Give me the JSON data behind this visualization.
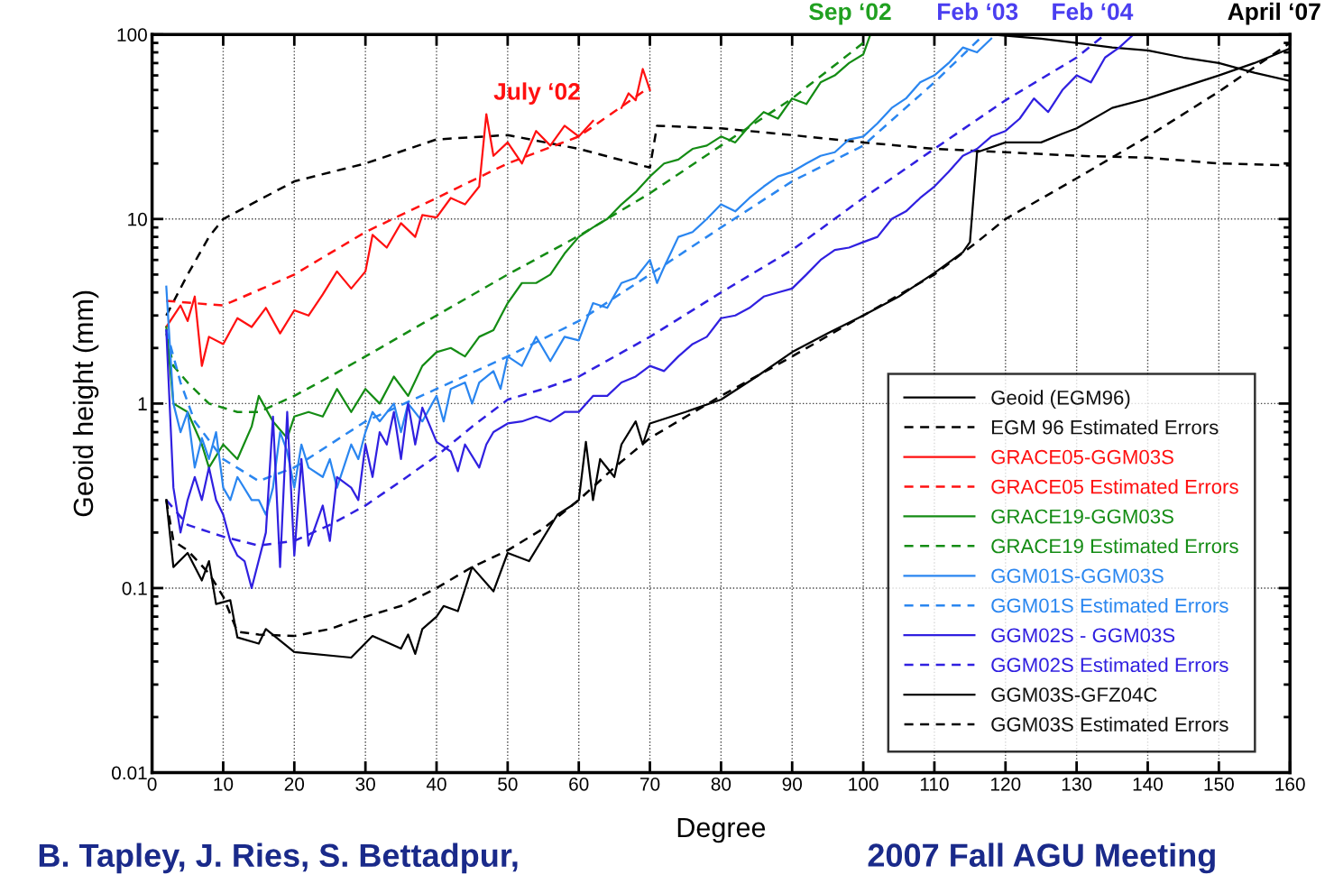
{
  "chart_data": {
    "type": "line",
    "xlabel": "Degree",
    "ylabel": "Geoid height (mm)",
    "log": "y",
    "grid": true,
    "legend": "bottom right",
    "xlim": [
      0,
      160
    ],
    "xticks": [
      0,
      10,
      20,
      30,
      40,
      50,
      60,
      70,
      80,
      90,
      100,
      110,
      120,
      130,
      140,
      150,
      160
    ],
    "ylim": [
      0.01,
      100
    ],
    "yticks": [
      0.01,
      0.1,
      1,
      10,
      100
    ],
    "annotations": [
      "July ‘02",
      "Sep ‘02",
      "Feb ‘03",
      "Feb ‘04",
      "April ‘07",
      "B. Tapley, J. Ries, S. Bettadpur,",
      "2007 Fall AGU Meeting"
    ],
    "series": [
      {
        "name": "Geoid (EGM96)",
        "color": "#000000",
        "line_style": "solid",
        "x": [
          118,
          125,
          130,
          135,
          140,
          145,
          150,
          155,
          160
        ],
        "values": [
          100,
          95,
          90,
          85,
          82,
          75,
          70,
          62,
          56
        ]
      },
      {
        "name": "EGM 96 Estimated Errors",
        "color": "#000000",
        "line_style": "dashed",
        "x": [
          2,
          5,
          8,
          10,
          20,
          30,
          40,
          50,
          60,
          70,
          71,
          80,
          90,
          100,
          110,
          120,
          130,
          140,
          150,
          160
        ],
        "values": [
          3,
          5,
          8,
          10,
          16,
          20,
          27,
          28.5,
          24,
          19,
          32,
          31,
          28.5,
          26,
          24,
          23,
          22,
          21.5,
          20,
          19.5
        ]
      },
      {
        "name": "GRACE05-GGM03S",
        "color": "#ff1010",
        "line_style": "solid",
        "x": [
          2,
          4,
          5,
          6,
          7,
          8,
          10,
          12,
          14,
          16,
          18,
          20,
          22,
          24,
          26,
          28,
          30,
          31,
          33,
          35,
          37,
          38,
          40,
          42,
          44,
          46,
          47,
          48,
          50,
          52,
          54,
          56,
          58,
          60,
          62,
          64,
          66,
          67,
          68,
          69,
          70
        ],
        "values": [
          2.6,
          3.4,
          2.8,
          3.8,
          1.6,
          2.3,
          2.1,
          2.9,
          2.6,
          3.3,
          2.4,
          3.2,
          3.0,
          3.9,
          5.2,
          4.2,
          5.2,
          8.2,
          7.0,
          9.5,
          8.0,
          10.5,
          10.2,
          13,
          12,
          15,
          37,
          22,
          26,
          20,
          30,
          25,
          32,
          28,
          34,
          null,
          40,
          48,
          44,
          65,
          50
        ]
      },
      {
        "name": "GRACE05 Estimated Errors",
        "color": "#ff1010",
        "line_style": "dashed",
        "x": [
          2,
          10,
          20,
          30,
          40,
          50,
          60,
          70
        ],
        "values": [
          3.6,
          3.4,
          5.0,
          8.5,
          13,
          20,
          28,
          52
        ]
      },
      {
        "name": "GRACE19-GGM03S",
        "color": "#148c14",
        "line_style": "solid",
        "x": [
          2,
          3,
          5,
          7,
          8,
          10,
          12,
          14,
          15,
          17,
          19,
          20,
          22,
          24,
          26,
          28,
          30,
          32,
          34,
          36,
          38,
          40,
          42,
          44,
          46,
          48,
          50,
          52,
          54,
          56,
          58,
          60,
          62,
          64,
          66,
          68,
          70,
          72,
          74,
          76,
          78,
          80,
          82,
          84,
          86,
          88,
          90,
          92,
          94,
          96,
          98,
          100,
          101
        ],
        "values": [
          2.6,
          1.0,
          0.9,
          0.6,
          0.45,
          0.6,
          0.5,
          0.75,
          1.1,
          0.8,
          0.65,
          0.85,
          0.9,
          0.85,
          1.2,
          0.9,
          1.2,
          1.0,
          1.4,
          1.1,
          1.6,
          1.9,
          2.0,
          1.8,
          2.3,
          2.5,
          3.5,
          4.5,
          4.5,
          5,
          6.5,
          8,
          9,
          10,
          12,
          14,
          17,
          20,
          21,
          24,
          25,
          28,
          26,
          32,
          38,
          35,
          45,
          42,
          55,
          60,
          70,
          78,
          100
        ]
      },
      {
        "name": "GRACE19 Estimated Errors",
        "color": "#148c14",
        "line_style": "dashed",
        "x": [
          2,
          3,
          5,
          8,
          12,
          15,
          20,
          25,
          30,
          40,
          50,
          60,
          70,
          80,
          90,
          100
        ],
        "values": [
          2.4,
          1.6,
          1.3,
          1.0,
          0.9,
          0.9,
          1.1,
          1.4,
          1.8,
          3.0,
          5.0,
          8.1,
          13.8,
          25,
          45,
          90
        ]
      },
      {
        "name": "GGM01S-GGM03S",
        "color": "#2a86f0",
        "line_style": "solid",
        "x": [
          2,
          3,
          4,
          5,
          6,
          7,
          8,
          9,
          10,
          11,
          12,
          14,
          15,
          16,
          17,
          18,
          19,
          20,
          21,
          22,
          24,
          25,
          26,
          28,
          29,
          30,
          31,
          32,
          34,
          35,
          36,
          38,
          40,
          41,
          42,
          44,
          45,
          46,
          48,
          49,
          50,
          52,
          54,
          56,
          58,
          60,
          62,
          64,
          66,
          68,
          70,
          71,
          72,
          74,
          76,
          78,
          80,
          82,
          84,
          86,
          88,
          90,
          92,
          94,
          96,
          98,
          100,
          102,
          104,
          106,
          108,
          110,
          112,
          114,
          116,
          118
        ],
        "values": [
          4.3,
          1.0,
          0.7,
          0.9,
          0.45,
          0.65,
          0.5,
          0.7,
          0.35,
          0.3,
          0.4,
          0.3,
          0.3,
          0.25,
          0.35,
          0.7,
          0.55,
          0.35,
          0.6,
          0.45,
          0.4,
          0.5,
          0.35,
          0.6,
          0.5,
          0.7,
          0.9,
          0.8,
          1.0,
          0.7,
          1.0,
          0.8,
          1.1,
          0.8,
          1.2,
          1.3,
          1.0,
          1.3,
          1.5,
          1.2,
          1.8,
          1.6,
          2.3,
          1.7,
          2.3,
          2.2,
          3.5,
          3.3,
          4.5,
          4.8,
          6.0,
          4.5,
          5.5,
          8,
          8.5,
          10,
          12,
          11,
          13,
          15,
          17,
          18,
          20,
          22,
          23,
          27,
          28,
          33,
          40,
          45,
          55,
          60,
          70,
          85,
          80,
          95
        ]
      },
      {
        "name": "GGM01S Estimated Errors",
        "color": "#2a86f0",
        "line_style": "dashed",
        "x": [
          2,
          4,
          6,
          10,
          15,
          20,
          30,
          40,
          50,
          60,
          70,
          80,
          90,
          100,
          110,
          117
        ],
        "values": [
          2.5,
          1.3,
          0.8,
          0.5,
          0.38,
          0.45,
          0.8,
          1.2,
          1.8,
          2.8,
          5.0,
          9,
          16,
          25,
          55,
          100
        ]
      },
      {
        "name": "GGM02S - GGM03S",
        "color": "#3020e0",
        "line_style": "solid",
        "x": [
          2,
          3,
          4,
          5,
          6,
          7,
          8,
          9,
          10,
          11,
          12,
          13,
          14,
          16,
          17,
          18,
          19,
          20,
          21,
          22,
          24,
          25,
          26,
          28,
          29,
          30,
          31,
          32,
          33,
          34,
          35,
          36,
          37,
          38,
          40,
          42,
          43,
          44,
          46,
          47,
          48,
          50,
          52,
          54,
          56,
          58,
          60,
          62,
          64,
          66,
          68,
          70,
          72,
          74,
          76,
          78,
          80,
          82,
          84,
          86,
          88,
          90,
          92,
          94,
          96,
          98,
          100,
          102,
          104,
          106,
          108,
          110,
          112,
          114,
          116,
          118,
          120,
          122,
          124,
          126,
          128,
          130,
          132,
          134,
          136,
          138
        ],
        "values": [
          2.5,
          0.35,
          0.2,
          0.3,
          0.4,
          0.3,
          0.45,
          0.3,
          0.25,
          0.18,
          0.15,
          0.14,
          0.1,
          0.2,
          0.85,
          0.13,
          0.9,
          0.15,
          0.5,
          0.17,
          0.28,
          0.18,
          0.4,
          0.35,
          0.3,
          0.6,
          0.4,
          0.7,
          0.6,
          0.9,
          0.5,
          1.0,
          0.6,
          0.95,
          0.62,
          0.55,
          0.43,
          0.6,
          0.45,
          0.6,
          0.7,
          0.78,
          0.8,
          0.85,
          0.8,
          0.9,
          0.9,
          1.1,
          1.1,
          1.3,
          1.4,
          1.6,
          1.5,
          1.8,
          2.1,
          2.3,
          2.9,
          3.0,
          3.3,
          3.8,
          4.0,
          4.2,
          5,
          6,
          6.8,
          7,
          7.5,
          8,
          10,
          11,
          13,
          15,
          18,
          22,
          24,
          28,
          30,
          35,
          45,
          38,
          50,
          60,
          55,
          75,
          85,
          100
        ]
      },
      {
        "name": "GGM02S Estimated Errors",
        "color": "#3020e0",
        "line_style": "dashed",
        "x": [
          2,
          5,
          10,
          15,
          20,
          25,
          30,
          35,
          40,
          45,
          50,
          55,
          60,
          70,
          80,
          90,
          100,
          110,
          120,
          130,
          134
        ],
        "values": [
          0.3,
          0.22,
          0.19,
          0.17,
          0.18,
          0.22,
          0.28,
          0.38,
          0.52,
          0.75,
          1.05,
          1.2,
          1.4,
          2.3,
          4.0,
          6.8,
          13,
          24,
          44,
          75,
          100
        ]
      },
      {
        "name": "GGM03S-GFZ04C",
        "color": "#000000",
        "line_style": "solid",
        "x": [
          2,
          3,
          5,
          7,
          8,
          9,
          11,
          12,
          15,
          16,
          20,
          28,
          31,
          35,
          36,
          37,
          38,
          40,
          41,
          43,
          45,
          48,
          50,
          53,
          57,
          59,
          60,
          61,
          62,
          63,
          65,
          66,
          68,
          69,
          70,
          75,
          80,
          85,
          90,
          95,
          100,
          105,
          110,
          114,
          115,
          116,
          120,
          125,
          128,
          130,
          135,
          140,
          145,
          150,
          155,
          160
        ],
        "values": [
          0.3,
          0.13,
          0.155,
          0.11,
          0.14,
          0.082,
          0.086,
          0.054,
          0.05,
          0.06,
          0.045,
          0.042,
          0.055,
          0.047,
          0.056,
          0.044,
          0.06,
          0.07,
          0.08,
          0.075,
          0.13,
          0.096,
          0.155,
          0.14,
          0.25,
          0.28,
          0.3,
          0.62,
          0.3,
          0.5,
          0.4,
          0.6,
          0.8,
          0.6,
          0.78,
          0.9,
          1.05,
          1.4,
          1.9,
          2.4,
          3.0,
          3.8,
          5.1,
          6.6,
          7.5,
          23,
          26,
          26,
          29,
          31,
          40,
          45,
          52,
          60,
          70,
          84
        ]
      },
      {
        "name": "GGM03S Estimated Errors",
        "color": "#000000",
        "line_style": "dashed",
        "x": [
          2,
          3,
          5,
          8,
          10,
          12,
          15,
          20,
          25,
          30,
          35,
          40,
          45,
          50,
          55,
          60,
          65,
          70,
          80,
          90,
          100,
          110,
          116,
          120,
          130,
          140,
          150,
          160
        ],
        "values": [
          0.3,
          0.18,
          0.16,
          0.12,
          0.09,
          0.058,
          0.056,
          0.055,
          0.06,
          0.07,
          0.08,
          0.1,
          0.13,
          0.16,
          0.21,
          0.3,
          0.45,
          0.65,
          1.1,
          1.8,
          3.0,
          5.0,
          7.5,
          10,
          16.6,
          28,
          49,
          90
        ]
      }
    ]
  }
}
